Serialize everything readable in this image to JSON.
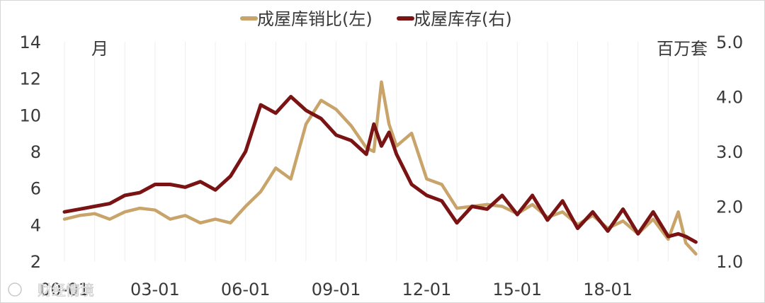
{
  "chart_data": {
    "type": "line",
    "title": "",
    "legend": {
      "placement": "top-center",
      "entries": [
        "成屋库销比(左)",
        "成屋库存(右)"
      ]
    },
    "left_axis": {
      "unit_label": "月",
      "ylim": [
        2,
        14
      ],
      "ticks": [
        "2",
        "4",
        "6",
        "8",
        "10",
        "12",
        "14"
      ]
    },
    "right_axis": {
      "unit_label": "百万套",
      "ylim": [
        1.0,
        5.0
      ],
      "ticks": [
        "1.0",
        "2.0",
        "3.0",
        "4.0",
        "5.0"
      ]
    },
    "x_axis": {
      "range": [
        "2000-01",
        "2020-12"
      ],
      "tick_labels": [
        "00-01",
        "03-01",
        "06-01",
        "09-01",
        "12-01",
        "15-01",
        "18-01"
      ],
      "tick_years": [
        2000,
        2003,
        2006,
        2009,
        2012,
        2015,
        2018
      ]
    },
    "gridlines": "vertical-only",
    "colors": {
      "months_supply": "#c8a46a",
      "inventory": "#7a1414"
    },
    "series": [
      {
        "name": "成屋库销比(左)",
        "axis": "left",
        "x": [
          "2000-01",
          "2000-07",
          "2001-01",
          "2001-07",
          "2002-01",
          "2002-07",
          "2003-01",
          "2003-07",
          "2004-01",
          "2004-07",
          "2005-01",
          "2005-07",
          "2006-01",
          "2006-07",
          "2007-01",
          "2007-07",
          "2008-01",
          "2008-07",
          "2009-01",
          "2009-07",
          "2010-01",
          "2010-04",
          "2010-07",
          "2010-10",
          "2011-01",
          "2011-07",
          "2012-01",
          "2012-07",
          "2013-01",
          "2013-07",
          "2014-01",
          "2014-07",
          "2015-01",
          "2015-07",
          "2016-01",
          "2016-07",
          "2017-01",
          "2017-07",
          "2018-01",
          "2018-07",
          "2019-01",
          "2019-07",
          "2020-01",
          "2020-05",
          "2020-08",
          "2020-12"
        ],
        "values": [
          4.3,
          4.5,
          4.6,
          4.3,
          4.7,
          4.9,
          4.8,
          4.3,
          4.5,
          4.1,
          4.3,
          4.1,
          5.0,
          5.8,
          7.1,
          6.5,
          9.5,
          10.8,
          10.3,
          9.4,
          8.2,
          8.0,
          11.8,
          9.5,
          8.3,
          9.0,
          6.5,
          6.2,
          4.9,
          5.0,
          5.1,
          5.0,
          4.6,
          5.1,
          4.4,
          4.7,
          4.0,
          4.5,
          3.8,
          4.2,
          3.5,
          4.3,
          3.2,
          4.7,
          3.0,
          2.4
        ]
      },
      {
        "name": "成屋库存(右)",
        "axis": "right",
        "x": [
          "2000-01",
          "2000-07",
          "2001-01",
          "2001-07",
          "2002-01",
          "2002-07",
          "2003-01",
          "2003-07",
          "2004-01",
          "2004-07",
          "2005-01",
          "2005-07",
          "2006-01",
          "2006-07",
          "2007-01",
          "2007-07",
          "2008-01",
          "2008-07",
          "2009-01",
          "2009-07",
          "2010-01",
          "2010-04",
          "2010-07",
          "2010-10",
          "2011-01",
          "2011-07",
          "2012-01",
          "2012-07",
          "2013-01",
          "2013-07",
          "2014-01",
          "2014-07",
          "2015-01",
          "2015-07",
          "2016-01",
          "2016-07",
          "2017-01",
          "2017-07",
          "2018-01",
          "2018-07",
          "2019-01",
          "2019-07",
          "2020-01",
          "2020-05",
          "2020-08",
          "2020-12"
        ],
        "values": [
          1.9,
          1.95,
          2.0,
          2.05,
          2.2,
          2.25,
          2.4,
          2.4,
          2.35,
          2.45,
          2.3,
          2.55,
          3.0,
          3.85,
          3.7,
          4.0,
          3.75,
          3.6,
          3.3,
          3.2,
          2.95,
          3.5,
          3.1,
          3.35,
          2.95,
          2.4,
          2.2,
          2.1,
          1.7,
          2.0,
          1.95,
          2.2,
          1.85,
          2.2,
          1.75,
          2.1,
          1.6,
          1.9,
          1.55,
          1.95,
          1.5,
          1.9,
          1.45,
          1.5,
          1.45,
          1.35
        ]
      }
    ]
  },
  "watermark": "财经情境"
}
